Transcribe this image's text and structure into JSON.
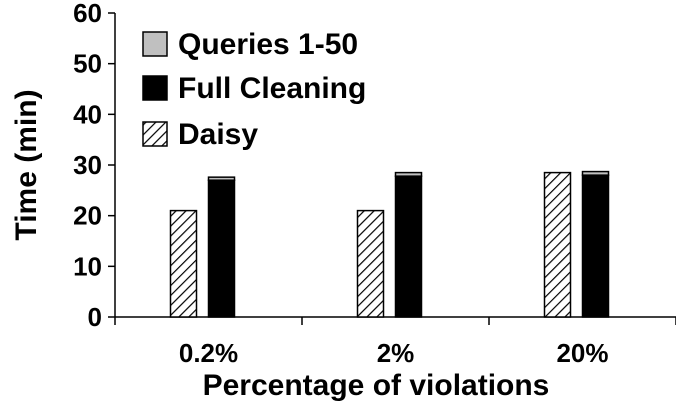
{
  "chart_data": {
    "type": "bar",
    "stacked": true,
    "title": "",
    "xlabel": "Percentage of violations",
    "ylabel": "Time (min)",
    "ylim": [
      0,
      60
    ],
    "yticks": [
      0,
      10,
      20,
      30,
      40,
      50,
      60
    ],
    "grid": false,
    "legend_position": "top-left",
    "categories": [
      "0.2%",
      "2%",
      "20%"
    ],
    "groups": [
      {
        "name": "Daisy",
        "pattern": "hatched",
        "stack": [
          {
            "series": "Daisy",
            "values": [
              21.0,
              21.0,
              28.5
            ]
          }
        ]
      },
      {
        "name": "Full Cleaning + Queries 1-50",
        "pattern": "solid",
        "stack": [
          {
            "series": "Full Cleaning",
            "values": [
              27.0,
              27.8,
              28.0
            ]
          },
          {
            "series": "Queries 1-50",
            "values": [
              0.6,
              0.7,
              0.7
            ]
          }
        ]
      }
    ],
    "series": [
      {
        "name": "Queries 1-50",
        "color": "#c0c0c0"
      },
      {
        "name": "Full Cleaning",
        "color": "#000000"
      },
      {
        "name": "Daisy",
        "color": "#ffffff",
        "pattern": "diagonal-hatch"
      }
    ]
  }
}
